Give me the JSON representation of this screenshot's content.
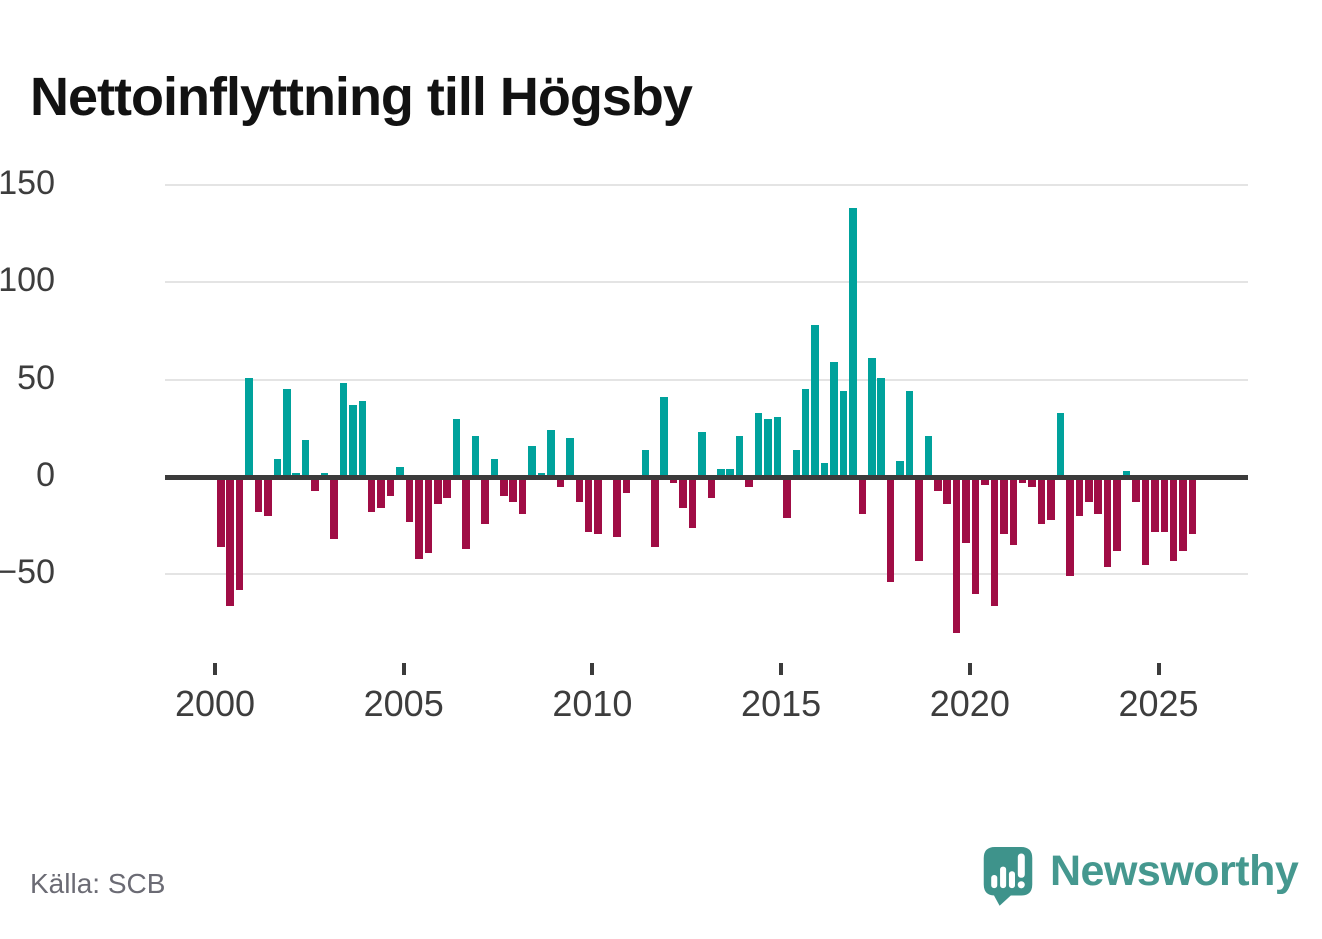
{
  "title": "Nettoinflyttning till Högsby",
  "source_note": "Källa: SCB",
  "branding": {
    "name": "Newsworthy",
    "icon": "newsworthy-speech-bubble-bar-chart-icon"
  },
  "colors": {
    "positive_bar": "#00a29c",
    "negative_bar": "#a00d45",
    "zero_line": "#3b3b3b",
    "gridline": "#e4e4e4",
    "axis_text": "#3d3d3d",
    "source_text": "#6b6b74",
    "brand_teal": "#45988f",
    "title_text": "#121212"
  },
  "chart_data": {
    "type": "bar",
    "title": "Nettoinflyttning till Högsby",
    "frequency": "quarterly",
    "start_period": "2000 Q1",
    "end_period": "2025 Q4",
    "grid": "horizontal",
    "legend_position": "none",
    "ylim": [
      -85,
      155
    ],
    "y_ticks": [
      150,
      100,
      50,
      0,
      -50
    ],
    "y_tick_labels": [
      "150",
      "100",
      "50",
      "0",
      "−50"
    ],
    "x_tick_years": [
      2000,
      2005,
      2010,
      2015,
      2020,
      2025
    ],
    "x_tick_labels": [
      "2000",
      "2005",
      "2010",
      "2015",
      "2020",
      "2025"
    ],
    "values": [
      -36,
      -66,
      -58,
      51,
      -18,
      -20,
      9,
      45,
      2,
      19,
      -7,
      2,
      -32,
      48,
      37,
      39,
      -18,
      -16,
      -10,
      5,
      -23,
      -42,
      -39,
      -14,
      -11,
      30,
      -37,
      21,
      -24,
      9,
      -10,
      -13,
      -19,
      16,
      2,
      24,
      -5,
      20,
      -13,
      -28,
      -29,
      0,
      -31,
      -8,
      0,
      14,
      -36,
      41,
      -3,
      -16,
      -26,
      23,
      -11,
      4,
      4,
      21,
      -5,
      33,
      30,
      31,
      -21,
      14,
      45,
      78,
      7,
      59,
      44,
      138,
      -19,
      61,
      51,
      -54,
      8,
      44,
      -43,
      21,
      -7,
      -14,
      -80,
      -34,
      -60,
      -4,
      -66,
      -29,
      -35,
      -3,
      -5,
      -24,
      -22,
      33,
      -51,
      -20,
      -13,
      -19,
      -46,
      -38,
      3,
      -13,
      -45,
      -28,
      -28,
      -43,
      -38,
      -29
    ]
  }
}
